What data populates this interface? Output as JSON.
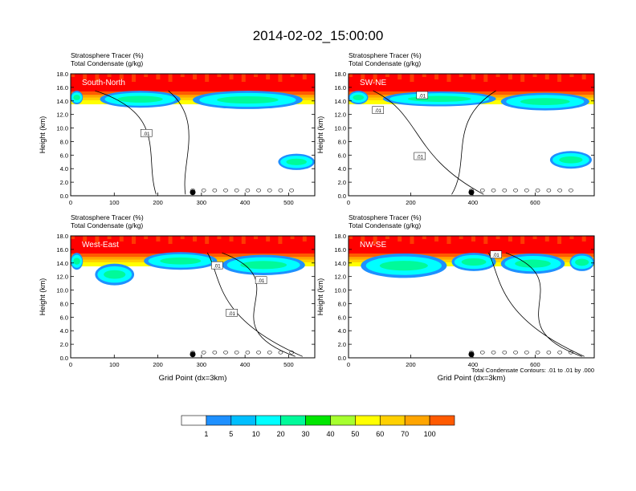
{
  "figure": {
    "title": "2014-02-02_15:00:00",
    "footnote": "Total Condensate Contours: .01 to .01 by .000"
  },
  "colorbar": {
    "labels": [
      "1",
      "5",
      "10",
      "20",
      "30",
      "40",
      "50",
      "60",
      "70",
      "100"
    ],
    "colors": [
      "#ffffff",
      "#1e90ff",
      "#00bfff",
      "#00ffff",
      "#00fa9a",
      "#00e600",
      "#a6ff2e",
      "#ffff00",
      "#ffd000",
      "#ffa500",
      "#ff5a00",
      "#ff0000"
    ]
  },
  "chart_data": [
    {
      "type": "heatmap",
      "title_line1": "Stratosphere Tracer   (%)",
      "title_line2": "Total Condensate   (g/kg)",
      "section_label": "South-North",
      "ylabel": "Height (km)",
      "xlabel": "",
      "xlim": [
        0,
        560
      ],
      "ylim": [
        0,
        18
      ],
      "xticks": [
        0,
        100,
        200,
        300,
        400,
        500
      ],
      "yticks": [
        "0.0",
        "2.0",
        "4.0",
        "6.0",
        "8.0",
        "10.0",
        "12.0",
        "14.0",
        "16.0",
        "18.0"
      ],
      "tracer_top_km": 15.8,
      "contour_labels": [
        ".01"
      ],
      "point_marker_x": 280
    },
    {
      "type": "heatmap",
      "title_line1": "Stratosphere Tracer   (%)",
      "title_line2": "Total Condensate   (g/kg)",
      "section_label": "SW-NE",
      "ylabel": "Height (km)",
      "xlabel": "",
      "xlim": [
        0,
        790
      ],
      "ylim": [
        0,
        18
      ],
      "xticks": [
        0,
        200,
        400,
        600
      ],
      "yticks": [
        "0.0",
        "2.0",
        "4.0",
        "6.0",
        "8.0",
        "10.0",
        "12.0",
        "14.0",
        "16.0",
        "18.0"
      ],
      "tracer_top_km": 15.8,
      "contour_labels": [
        ".01",
        ".01",
        ".01"
      ],
      "point_marker_x": 395
    },
    {
      "type": "heatmap",
      "title_line1": "Stratosphere Tracer   (%)",
      "title_line2": "Total Condensate   (g/kg)",
      "section_label": "West-East",
      "ylabel": "Height (km)",
      "xlabel": "Grid Point (dx=3km)",
      "xlim": [
        0,
        560
      ],
      "ylim": [
        0,
        18
      ],
      "xticks": [
        0,
        100,
        200,
        300,
        400,
        500
      ],
      "yticks": [
        "0.0",
        "2.0",
        "4.0",
        "6.0",
        "8.0",
        "10.0",
        "12.0",
        "14.0",
        "16.0",
        "18.0"
      ],
      "tracer_top_km": 15.8,
      "contour_labels": [
        ".01",
        ".01",
        ".01"
      ],
      "point_marker_x": 280
    },
    {
      "type": "heatmap",
      "title_line1": "Stratosphere Tracer   (%)",
      "title_line2": "Total Condensate   (g/kg)",
      "section_label": "NW-SE",
      "ylabel": "Height (km)",
      "xlabel": "Grid Point (dx=3km)",
      "xlim": [
        0,
        790
      ],
      "ylim": [
        0,
        18
      ],
      "xticks": [
        0,
        200,
        400,
        600
      ],
      "yticks": [
        "0.0",
        "2.0",
        "4.0",
        "6.0",
        "8.0",
        "10.0",
        "12.0",
        "14.0",
        "16.0",
        "18.0"
      ],
      "tracer_top_km": 15.8,
      "contour_labels": [
        ".01"
      ],
      "point_marker_x": 395
    }
  ]
}
